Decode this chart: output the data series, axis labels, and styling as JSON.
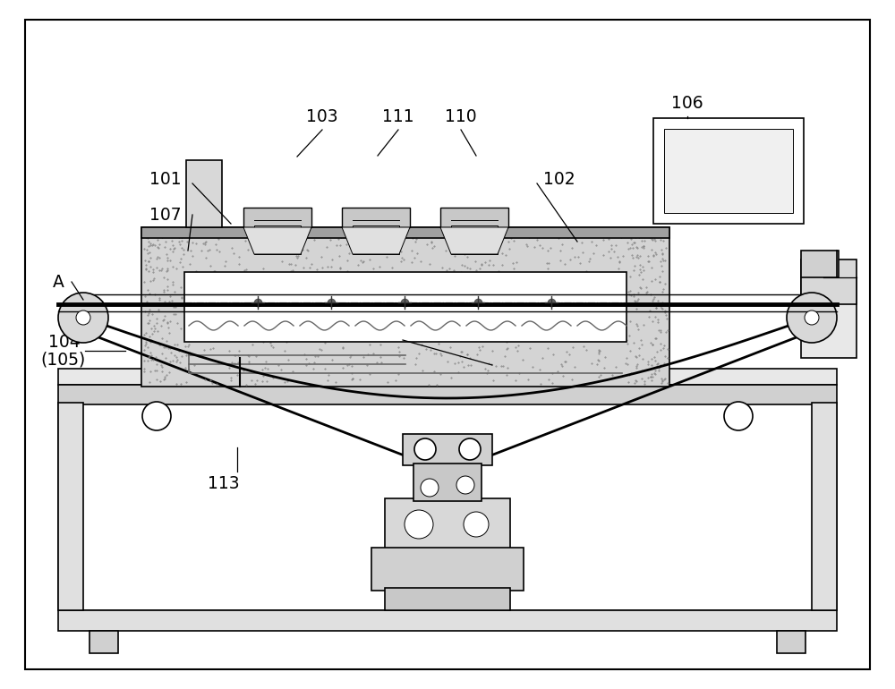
{
  "bg_color": "#ffffff",
  "line_color": "#000000",
  "figsize": [
    10,
    7.7
  ],
  "dpi": 100
}
